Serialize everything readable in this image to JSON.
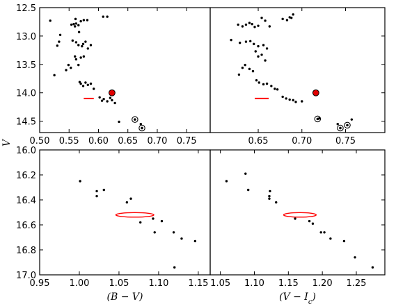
{
  "chart_data": {
    "type": "scatter",
    "shared_ylabel": "V",
    "panels": [
      {
        "id": "top-left",
        "xlim": [
          0.5,
          0.79
        ],
        "ylim": [
          12.5,
          14.7
        ],
        "xticks": [
          0.5,
          0.55,
          0.6,
          0.65,
          0.7,
          0.75
        ],
        "xtick_labels": [
          "0.50",
          "0.55",
          "0.60",
          "0.65",
          "0.70",
          "0.75"
        ],
        "yticks": [
          12.5,
          13.0,
          13.5,
          14.0,
          14.5
        ],
        "ytick_labels": [
          "12.5",
          "13.0",
          "13.5",
          "14.0",
          "14.5"
        ],
        "xlabel": "",
        "points": [
          [
            0.518,
            12.73
          ],
          [
            0.535,
            12.98
          ],
          [
            0.533,
            13.1
          ],
          [
            0.53,
            13.17
          ],
          [
            0.545,
            13.6
          ],
          [
            0.554,
            12.8
          ],
          [
            0.558,
            12.79
          ],
          [
            0.56,
            12.83
          ],
          [
            0.562,
            12.78
          ],
          [
            0.561,
            12.7
          ],
          [
            0.566,
            12.81
          ],
          [
            0.567,
            12.93
          ],
          [
            0.57,
            12.74
          ],
          [
            0.575,
            12.72
          ],
          [
            0.581,
            12.72
          ],
          [
            0.608,
            12.66
          ],
          [
            0.615,
            12.66
          ],
          [
            0.556,
            13.08
          ],
          [
            0.562,
            13.11
          ],
          [
            0.566,
            13.16
          ],
          [
            0.572,
            13.18
          ],
          [
            0.574,
            13.14
          ],
          [
            0.578,
            13.1
          ],
          [
            0.582,
            13.22
          ],
          [
            0.587,
            13.16
          ],
          [
            0.56,
            13.36
          ],
          [
            0.562,
            13.41
          ],
          [
            0.57,
            13.38
          ],
          [
            0.575,
            13.36
          ],
          [
            0.566,
            13.51
          ],
          [
            0.553,
            13.56
          ],
          [
            0.549,
            13.51
          ],
          [
            0.568,
            13.81
          ],
          [
            0.57,
            13.84
          ],
          [
            0.574,
            13.88
          ],
          [
            0.578,
            13.82
          ],
          [
            0.582,
            13.86
          ],
          [
            0.587,
            13.84
          ],
          [
            0.592,
            13.93
          ],
          [
            0.602,
            14.08
          ],
          [
            0.606,
            14.14
          ],
          [
            0.609,
            14.11
          ],
          [
            0.615,
            14.15
          ],
          [
            0.62,
            14.09
          ],
          [
            0.623,
            14.13
          ],
          [
            0.628,
            14.18
          ],
          [
            0.635,
            14.51
          ],
          [
            0.672,
            14.55
          ],
          [
            0.525,
            13.69
          ]
        ],
        "highlight_point": [
          0.623,
          14.0
        ],
        "circled_points": [
          [
            0.662,
            14.47
          ],
          [
            0.674,
            14.62
          ]
        ],
        "error_bar": {
          "x": [
            0.575,
            0.592
          ],
          "y": 14.1
        }
      },
      {
        "id": "top-right",
        "xlim": [
          0.595,
          0.795
        ],
        "ylim": [
          12.5,
          14.7
        ],
        "xticks": [
          0.65,
          0.7,
          0.75
        ],
        "xtick_labels": [
          "0.65",
          "0.70",
          "0.75"
        ],
        "xlabel": "",
        "points": [
          [
            0.619,
            13.07
          ],
          [
            0.627,
            12.8
          ],
          [
            0.632,
            12.83
          ],
          [
            0.636,
            12.8
          ],
          [
            0.64,
            12.77
          ],
          [
            0.643,
            12.79
          ],
          [
            0.646,
            12.84
          ],
          [
            0.65,
            12.82
          ],
          [
            0.654,
            12.68
          ],
          [
            0.658,
            12.73
          ],
          [
            0.663,
            12.83
          ],
          [
            0.678,
            12.7
          ],
          [
            0.683,
            12.72
          ],
          [
            0.688,
            12.68
          ],
          [
            0.686,
            12.67
          ],
          [
            0.69,
            12.62
          ],
          [
            0.629,
            13.12
          ],
          [
            0.636,
            13.1
          ],
          [
            0.641,
            13.09
          ],
          [
            0.645,
            13.14
          ],
          [
            0.65,
            13.18
          ],
          [
            0.656,
            13.16
          ],
          [
            0.66,
            13.22
          ],
          [
            0.647,
            13.27
          ],
          [
            0.65,
            13.36
          ],
          [
            0.654,
            13.33
          ],
          [
            0.658,
            13.43
          ],
          [
            0.635,
            13.51
          ],
          [
            0.632,
            13.56
          ],
          [
            0.64,
            13.58
          ],
          [
            0.644,
            13.62
          ],
          [
            0.648,
            13.78
          ],
          [
            0.651,
            13.82
          ],
          [
            0.656,
            13.85
          ],
          [
            0.66,
            13.84
          ],
          [
            0.665,
            13.88
          ],
          [
            0.669,
            13.93
          ],
          [
            0.672,
            13.94
          ],
          [
            0.678,
            14.07
          ],
          [
            0.682,
            14.1
          ],
          [
            0.686,
            14.12
          ],
          [
            0.69,
            14.13
          ],
          [
            0.693,
            14.16
          ],
          [
            0.7,
            14.15
          ],
          [
            0.72,
            14.45
          ],
          [
            0.741,
            14.55
          ],
          [
            0.757,
            14.47
          ],
          [
            0.628,
            13.68
          ]
        ],
        "highlight_point": [
          0.716,
          14.0
        ],
        "circled_points": [
          [
            0.718,
            14.46
          ],
          [
            0.744,
            14.62
          ],
          [
            0.752,
            14.57
          ]
        ],
        "error_bar": {
          "x": [
            0.646,
            0.662
          ],
          "y": 14.1
        }
      },
      {
        "id": "bottom-left",
        "xlim": [
          0.95,
          1.165
        ],
        "ylim": [
          16.0,
          17.0
        ],
        "xticks": [
          0.95,
          1.0,
          1.05,
          1.1,
          1.15
        ],
        "xtick_labels": [
          "0.95",
          "1.00",
          "1.05",
          "1.10",
          "1.15"
        ],
        "yticks": [
          16.0,
          16.2,
          16.4,
          16.6,
          16.8,
          17.0
        ],
        "ytick_labels": [
          "16.0",
          "16.2",
          "16.4",
          "16.6",
          "16.8",
          "17.0"
        ],
        "xlabel": "(B − V)",
        "points": [
          [
            1.001,
            16.25
          ],
          [
            1.022,
            16.33
          ],
          [
            1.022,
            16.37
          ],
          [
            1.031,
            16.32
          ],
          [
            1.06,
            16.42
          ],
          [
            1.065,
            16.39
          ],
          [
            1.077,
            16.58
          ],
          [
            1.093,
            16.55
          ],
          [
            1.095,
            16.66
          ],
          [
            1.104,
            16.57
          ],
          [
            1.119,
            16.66
          ],
          [
            1.129,
            16.71
          ],
          [
            1.146,
            16.73
          ],
          [
            1.12,
            16.94
          ]
        ],
        "ellipse": {
          "cx": 1.07,
          "cy": 16.52,
          "rx": 0.024,
          "ry": 0.018
        }
      },
      {
        "id": "bottom-right",
        "xlim": [
          1.035,
          1.292
        ],
        "ylim": [
          16.0,
          17.0
        ],
        "xticks": [
          1.05,
          1.1,
          1.15,
          1.2,
          1.25
        ],
        "xtick_labels": [
          "1.05",
          "1.10",
          "1.15",
          "1.20",
          "1.25"
        ],
        "xlabel": "(V − I",
        "xlabel_sub": "c",
        "xlabel_end": ")",
        "points": [
          [
            1.059,
            16.25
          ],
          [
            1.087,
            16.19
          ],
          [
            1.091,
            16.32
          ],
          [
            1.123,
            16.33
          ],
          [
            1.122,
            16.37
          ],
          [
            1.122,
            16.39
          ],
          [
            1.132,
            16.42
          ],
          [
            1.16,
            16.55
          ],
          [
            1.181,
            16.57
          ],
          [
            1.186,
            16.59
          ],
          [
            1.198,
            16.66
          ],
          [
            1.203,
            16.66
          ],
          [
            1.212,
            16.71
          ],
          [
            1.232,
            16.73
          ],
          [
            1.248,
            16.86
          ],
          [
            1.274,
            16.94
          ]
        ],
        "ellipse": {
          "cx": 1.167,
          "cy": 16.52,
          "rx": 0.024,
          "ry": 0.018
        }
      }
    ],
    "colors": {
      "points": "#000000",
      "highlight": "#e00000",
      "error": "#ff0000",
      "axes": "#000000"
    }
  }
}
